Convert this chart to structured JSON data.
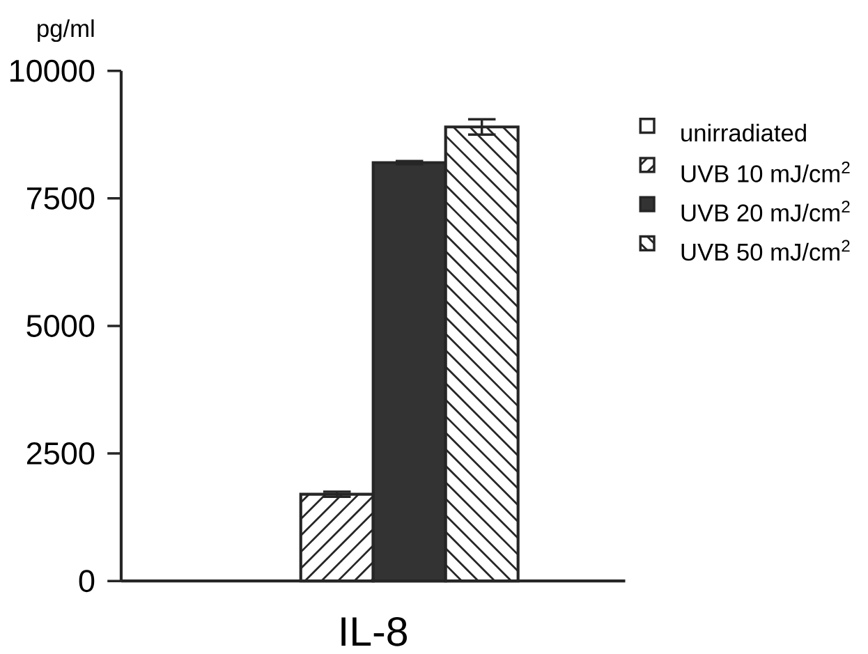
{
  "chart_data": {
    "type": "bar",
    "ylabel": "pg/ml",
    "categories": [
      "IL-8"
    ],
    "series": [
      {
        "name": "unirradiated",
        "color": "#ffffff",
        "values": [
          null
        ],
        "errors": [
          null
        ]
      },
      {
        "name": "UVB 10 mJ/cm$^{2}$",
        "color": "#ffffff",
        "values": [
          1700
        ],
        "errors": [
          50
        ]
      },
      {
        "name": "UVB 20 mJ/cm$^{2}$",
        "color": "#333333",
        "values": [
          8200
        ],
        "errors": [
          30
        ]
      },
      {
        "name": "UVB 50 mJ/cm$^{2}$",
        "color": "#ffffff",
        "values": [
          8900
        ],
        "errors": [
          150
        ]
      }
    ],
    "ylim": [
      0,
      10000
    ],
    "yticks": [
      0,
      2500,
      5000,
      7500,
      10000
    ],
    "grid": false,
    "legend": "right"
  }
}
